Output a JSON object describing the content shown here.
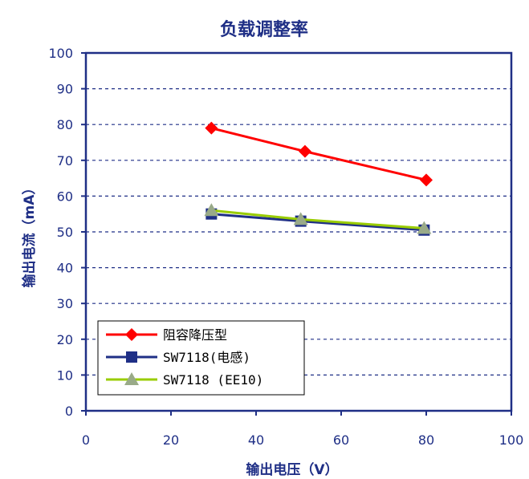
{
  "chart_data": {
    "type": "line",
    "title": "负载调整率",
    "xlabel": "输出电压（V）",
    "ylabel": "输出电流（mA）",
    "xlim": [
      0,
      100
    ],
    "ylim": [
      0,
      100
    ],
    "x_ticks": [
      "0",
      "20",
      "40",
      "60",
      "80",
      "100"
    ],
    "y_ticks": [
      "0",
      "10",
      "20",
      "30",
      "40",
      "50",
      "60",
      "70",
      "80",
      "90",
      "100"
    ],
    "grid": "horizontal dashed",
    "legend_position": "bottom-left",
    "series": [
      {
        "name": "阻容降压型",
        "color": "#ff0000",
        "marker": "diamond",
        "points": [
          {
            "x": 29.5,
            "y": 79
          },
          {
            "x": 51.5,
            "y": 72.5
          },
          {
            "x": 80,
            "y": 64.5
          }
        ]
      },
      {
        "name": "SW7118(电感)",
        "color": "#1f2f86",
        "marker": "square",
        "points": [
          {
            "x": 29.5,
            "y": 55
          },
          {
            "x": 50.5,
            "y": 53
          },
          {
            "x": 79.5,
            "y": 50.5
          }
        ]
      },
      {
        "name": "SW7118 (EE10)",
        "color": "#99cc00",
        "marker": "triangle",
        "marker_color": "#99aa88",
        "points": [
          {
            "x": 29.5,
            "y": 56
          },
          {
            "x": 50.5,
            "y": 53.5
          },
          {
            "x": 79.5,
            "y": 51
          }
        ]
      }
    ]
  }
}
